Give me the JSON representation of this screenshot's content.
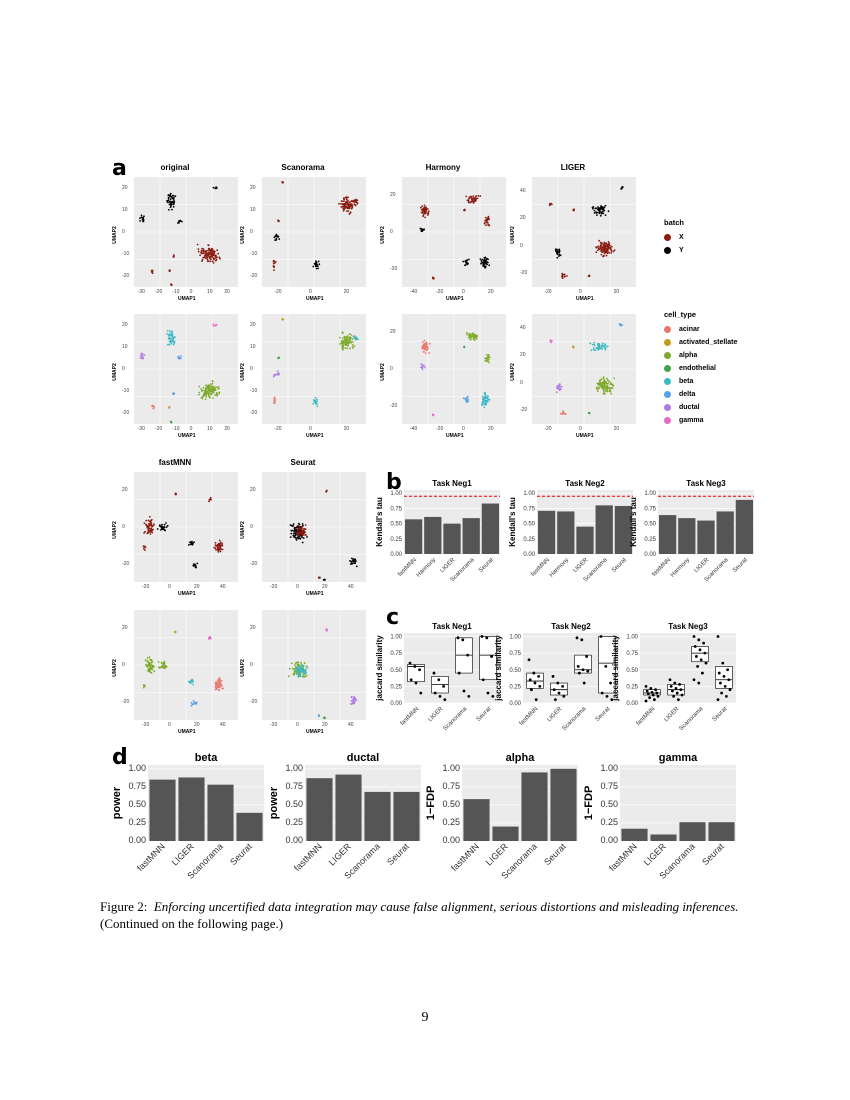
{
  "panels": {
    "a": "a",
    "b": "b",
    "c": "c",
    "d": "d"
  },
  "umap_axis": {
    "x": "UMAP1",
    "y": "UMAP2"
  },
  "umap_row1": [
    {
      "title": "original",
      "xticks": [
        "-30",
        "-20",
        "-10",
        "0",
        "10",
        "20"
      ],
      "yticks": [
        "20",
        "10",
        "0",
        "-10",
        "-20"
      ]
    },
    {
      "title": "Scanorama",
      "xticks": [
        "-20",
        "0",
        "20"
      ],
      "yticks": [
        "20",
        "10",
        "0",
        "-10",
        "-20"
      ]
    },
    {
      "title": "Harmony",
      "xticks": [
        "-40",
        "-20",
        "0",
        "20"
      ],
      "yticks": [
        "20",
        "0",
        "-20"
      ]
    },
    {
      "title": "LIGER",
      "xticks": [
        "-20",
        "0",
        "20"
      ],
      "yticks": [
        "40",
        "20",
        "0",
        "-20"
      ]
    }
  ],
  "umap_row2": [
    {
      "xticks": [
        "-30",
        "-20",
        "-10",
        "0",
        "10",
        "20"
      ],
      "yticks": [
        "20",
        "10",
        "0",
        "-10",
        "-20"
      ]
    },
    {
      "xticks": [
        "-20",
        "0",
        "20"
      ],
      "yticks": [
        "20",
        "10",
        "0",
        "-10",
        "-20"
      ]
    },
    {
      "xticks": [
        "-40",
        "-20",
        "0",
        "20"
      ],
      "yticks": [
        "20",
        "0",
        "-20"
      ]
    },
    {
      "xticks": [
        "-20",
        "0",
        "20"
      ],
      "yticks": [
        "40",
        "20",
        "0",
        "-20"
      ]
    }
  ],
  "umap_row3": [
    {
      "title": "fastMNN",
      "xticks": [
        "-20",
        "0",
        "20",
        "40"
      ],
      "yticks": [
        "20",
        "0",
        "-20"
      ]
    },
    {
      "title": "Seurat",
      "xticks": [
        "-20",
        "0",
        "20",
        "40"
      ],
      "yticks": [
        "20",
        "0",
        "-20"
      ]
    }
  ],
  "umap_row4": [
    {
      "xticks": [
        "-20",
        "0",
        "20",
        "40"
      ],
      "yticks": [
        "20",
        "0",
        "-20"
      ]
    },
    {
      "xticks": [
        "-20",
        "0",
        "20",
        "40"
      ],
      "yticks": [
        "20",
        "0",
        "-20"
      ]
    }
  ],
  "legend_batch": {
    "title": "batch",
    "items": [
      {
        "label": "X",
        "color": "#8b1a10"
      },
      {
        "label": "Y",
        "color": "#000000"
      }
    ]
  },
  "legend_cell": {
    "title": "cell_type",
    "items": [
      {
        "label": "acinar",
        "color": "#e8776c"
      },
      {
        "label": "activated_stellate",
        "color": "#c8971f"
      },
      {
        "label": "alpha",
        "color": "#7fab2c"
      },
      {
        "label": "endothelial",
        "color": "#3fa34a"
      },
      {
        "label": "beta",
        "color": "#3bb8c4"
      },
      {
        "label": "delta",
        "color": "#55a0e6"
      },
      {
        "label": "ductal",
        "color": "#b07be0"
      },
      {
        "label": "gamma",
        "color": "#e868c8"
      }
    ]
  },
  "chart_data": [
    {
      "type": "bar",
      "panel": "b",
      "title": "Task Neg1",
      "ylabel": "Kendall's tau",
      "categories": [
        "fastMNN",
        "Harmony",
        "LIGER",
        "Scanorama",
        "Seurat"
      ],
      "values": [
        0.57,
        0.61,
        0.5,
        0.59,
        0.83
      ],
      "reference_line": 0.95,
      "ylim": [
        0,
        1
      ],
      "yticks": [
        "0.00",
        "0.25",
        "0.50",
        "0.75",
        "1.00"
      ]
    },
    {
      "type": "bar",
      "panel": "b",
      "title": "Task Neg2",
      "ylabel": "Kendall's tau",
      "categories": [
        "fastMNN",
        "Harmony",
        "LIGER",
        "Scanorama",
        "Seurat"
      ],
      "values": [
        0.71,
        0.7,
        0.45,
        0.8,
        0.79
      ],
      "reference_line": 0.95,
      "ylim": [
        0,
        1
      ],
      "yticks": [
        "0.00",
        "0.25",
        "0.50",
        "0.75",
        "1.00"
      ]
    },
    {
      "type": "bar",
      "panel": "b",
      "title": "Task Neg3",
      "ylabel": "Kendall's tau",
      "categories": [
        "fastMNN",
        "Harmony",
        "LIGER",
        "Scanorama",
        "Seurat"
      ],
      "values": [
        0.64,
        0.59,
        0.55,
        0.7,
        0.89
      ],
      "reference_line": 0.95,
      "ylim": [
        0,
        1
      ],
      "yticks": [
        "0.00",
        "0.25",
        "0.50",
        "0.75",
        "1.00"
      ]
    },
    {
      "type": "box",
      "panel": "c",
      "title": "Task Neg1",
      "ylabel": "jaccard similarity",
      "categories": [
        "fastMNN",
        "LIGER",
        "Scanorama",
        "Seurat"
      ],
      "yticks": [
        "0.00",
        "0.25",
        "0.50",
        "0.75",
        "1.00"
      ],
      "boxes": [
        {
          "q1": 0.32,
          "median": 0.55,
          "q3": 0.58
        },
        {
          "q1": 0.15,
          "median": 0.28,
          "q3": 0.4
        },
        {
          "q1": 0.45,
          "median": 0.72,
          "q3": 0.98
        },
        {
          "q1": 0.35,
          "median": 0.72,
          "q3": 1.0
        }
      ],
      "points": [
        [
          0.6,
          0.55,
          0.5,
          0.35,
          0.3,
          0.15
        ],
        [
          0.45,
          0.35,
          0.25,
          0.15,
          0.1,
          0.05
        ],
        [
          0.98,
          0.95,
          0.72,
          0.45,
          0.18,
          0.1
        ],
        [
          1.0,
          0.98,
          0.7,
          0.35,
          0.15,
          0.1
        ]
      ]
    },
    {
      "type": "box",
      "panel": "c",
      "title": "Task Neg2",
      "ylabel": "jaccard similarity",
      "categories": [
        "fastMNN",
        "LIGER",
        "Scanorama",
        "Seurat"
      ],
      "yticks": [
        "0.00",
        "0.25",
        "0.50",
        "0.75",
        "1.00"
      ],
      "boxes": [
        {
          "q1": 0.22,
          "median": 0.33,
          "q3": 0.45
        },
        {
          "q1": 0.12,
          "median": 0.2,
          "q3": 0.3
        },
        {
          "q1": 0.45,
          "median": 0.5,
          "q3": 0.72
        },
        {
          "q1": 0.15,
          "median": 0.6,
          "q3": 1.0
        }
      ],
      "points": [
        [
          0.65,
          0.45,
          0.4,
          0.35,
          0.3,
          0.25,
          0.2,
          0.05
        ],
        [
          0.4,
          0.3,
          0.25,
          0.2,
          0.15,
          0.1,
          0.05
        ],
        [
          0.98,
          0.95,
          0.7,
          0.55,
          0.5,
          0.48,
          0.45,
          0.3
        ],
        [
          1.0,
          0.55,
          0.3,
          0.15,
          0.1,
          0.05
        ]
      ]
    },
    {
      "type": "box",
      "panel": "c",
      "title": "Task Neg3",
      "ylabel": "jaccard similarity",
      "categories": [
        "fastMNN",
        "LIGER",
        "Scanorama",
        "Seurat"
      ],
      "yticks": [
        "0.00",
        "0.25",
        "0.50",
        "0.75",
        "1.00"
      ],
      "boxes": [
        {
          "q1": 0.12,
          "median": 0.15,
          "q3": 0.2
        },
        {
          "q1": 0.12,
          "median": 0.2,
          "q3": 0.28
        },
        {
          "q1": 0.62,
          "median": 0.75,
          "q3": 0.85
        },
        {
          "q1": 0.22,
          "median": 0.35,
          "q3": 0.55
        }
      ],
      "points": [
        [
          0.25,
          0.22,
          0.2,
          0.18,
          0.16,
          0.15,
          0.14,
          0.12,
          0.1,
          0.08,
          0.05,
          0.03
        ],
        [
          0.35,
          0.3,
          0.28,
          0.25,
          0.22,
          0.2,
          0.18,
          0.15,
          0.12,
          0.1,
          0.05
        ],
        [
          1.0,
          0.95,
          0.9,
          0.85,
          0.8,
          0.75,
          0.7,
          0.65,
          0.6,
          0.55,
          0.45,
          0.35,
          0.3
        ],
        [
          1.0,
          0.6,
          0.5,
          0.45,
          0.4,
          0.35,
          0.3,
          0.25,
          0.2,
          0.15,
          0.1,
          0.05
        ]
      ]
    },
    {
      "type": "bar",
      "panel": "d",
      "title": "beta",
      "ylabel": "power",
      "categories": [
        "fastMNN",
        "LIGER",
        "Scanorama",
        "Seurat"
      ],
      "values": [
        0.85,
        0.88,
        0.78,
        0.39
      ],
      "ylim": [
        0,
        1
      ],
      "yticks": [
        "0.00",
        "0.25",
        "0.50",
        "0.75",
        "1.00"
      ]
    },
    {
      "type": "bar",
      "panel": "d",
      "title": "ductal",
      "ylabel": "power",
      "categories": [
        "fastMNN",
        "LIGER",
        "Scanorama",
        "Seurat"
      ],
      "values": [
        0.87,
        0.92,
        0.68,
        0.68
      ],
      "ylim": [
        0,
        1
      ],
      "yticks": [
        "0.00",
        "0.25",
        "0.50",
        "0.75",
        "1.00"
      ]
    },
    {
      "type": "bar",
      "panel": "d",
      "title": "alpha",
      "ylabel": "1−FDP",
      "categories": [
        "fastMNN",
        "LIGER",
        "Scanorama",
        "Seurat"
      ],
      "values": [
        0.58,
        0.2,
        0.95,
        1.0
      ],
      "ylim": [
        0,
        1
      ],
      "yticks": [
        "0.00",
        "0.25",
        "0.50",
        "0.75",
        "1.00"
      ]
    },
    {
      "type": "bar",
      "panel": "d",
      "title": "gamma",
      "ylabel": "1−FDP",
      "categories": [
        "fastMNN",
        "LIGER",
        "Scanorama",
        "Seurat"
      ],
      "values": [
        0.17,
        0.09,
        0.26,
        0.26
      ],
      "ylim": [
        0,
        1
      ],
      "yticks": [
        "0.00",
        "0.25",
        "0.50",
        "0.75",
        "1.00"
      ]
    }
  ],
  "caption": {
    "label": "Figure 2:",
    "text": "Enforcing uncertified data integration may cause false alignment, serious distortions and misleading inferences.",
    "note": "(Continued on the following page.)"
  },
  "page_number": "9"
}
